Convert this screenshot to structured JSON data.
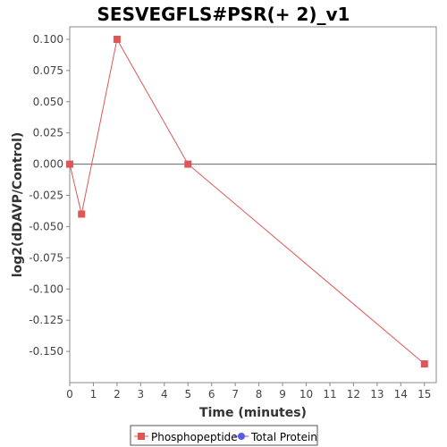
{
  "chart_data": {
    "type": "line",
    "title": "SESVEGFLS#PSR(+ 2)_v1",
    "xlabel": "Time (minutes)",
    "ylabel": "log2(dDAVP/Control)",
    "xlim": [
      0,
      15.5
    ],
    "ylim": [
      -0.175,
      0.11
    ],
    "x_ticks": [
      "0",
      "1",
      "2",
      "3",
      "4",
      "5",
      "6",
      "7",
      "8",
      "9",
      "10",
      "11",
      "12",
      "13",
      "14",
      "15"
    ],
    "y_ticks": [
      "0.100",
      "0.075",
      "0.050",
      "0.025",
      "0.000",
      "-0.025",
      "-0.050",
      "-0.075",
      "-0.100",
      "-0.125",
      "-0.150"
    ],
    "series": [
      {
        "name": "Phosphopeptide",
        "color": "#e05656",
        "marker": "square",
        "x": [
          0,
          0.5,
          2,
          5,
          15
        ],
        "y": [
          0.0,
          -0.04,
          0.1,
          0.0,
          -0.16
        ]
      },
      {
        "name": "Total Protein",
        "color": "#5a5ae6",
        "marker": "circle",
        "x": [],
        "y": []
      }
    ],
    "legend_position": "bottom",
    "grid": false,
    "zero_line": true
  }
}
